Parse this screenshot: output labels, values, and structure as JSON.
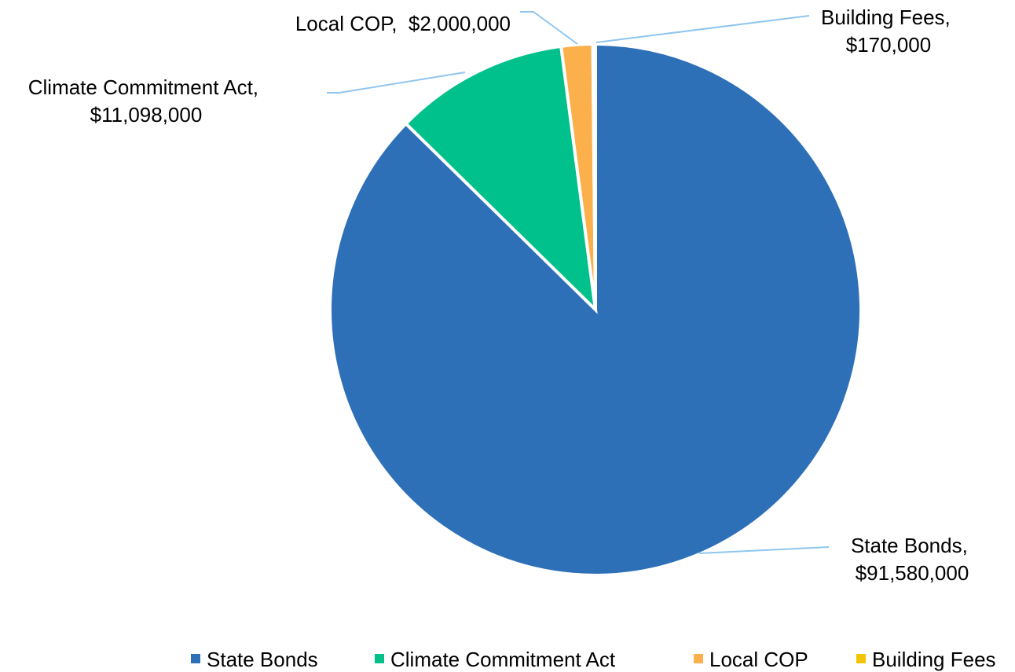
{
  "chart_data": {
    "type": "pie",
    "title": "",
    "series": [
      {
        "name": "State Bonds",
        "value": 91580000,
        "display": "$91,580,000",
        "color": "#2e70b8"
      },
      {
        "name": "Climate Commitment Act",
        "value": 11098000,
        "display": "$11,098,000",
        "color": "#00c08b"
      },
      {
        "name": "Local COP",
        "value": 2000000,
        "display": "$2,000,000",
        "color": "#fbb04c"
      },
      {
        "name": "Building Fees",
        "value": 170000,
        "display": "$170,000",
        "color": "#f5c400"
      }
    ],
    "data_labels": [
      {
        "line1": "State Bonds,",
        "line2": "$91,580,000"
      },
      {
        "line1": "Climate Commitment Act,",
        "line2": "$11,098,000"
      },
      {
        "line1": "Local COP,  $2,000,000",
        "line2": ""
      },
      {
        "line1": "Building Fees,",
        "line2": "$170,000"
      }
    ],
    "legend": {
      "position": "bottom",
      "items": [
        "State Bonds",
        "Climate Commitment Act",
        "Local COP",
        "Building Fees"
      ]
    }
  }
}
